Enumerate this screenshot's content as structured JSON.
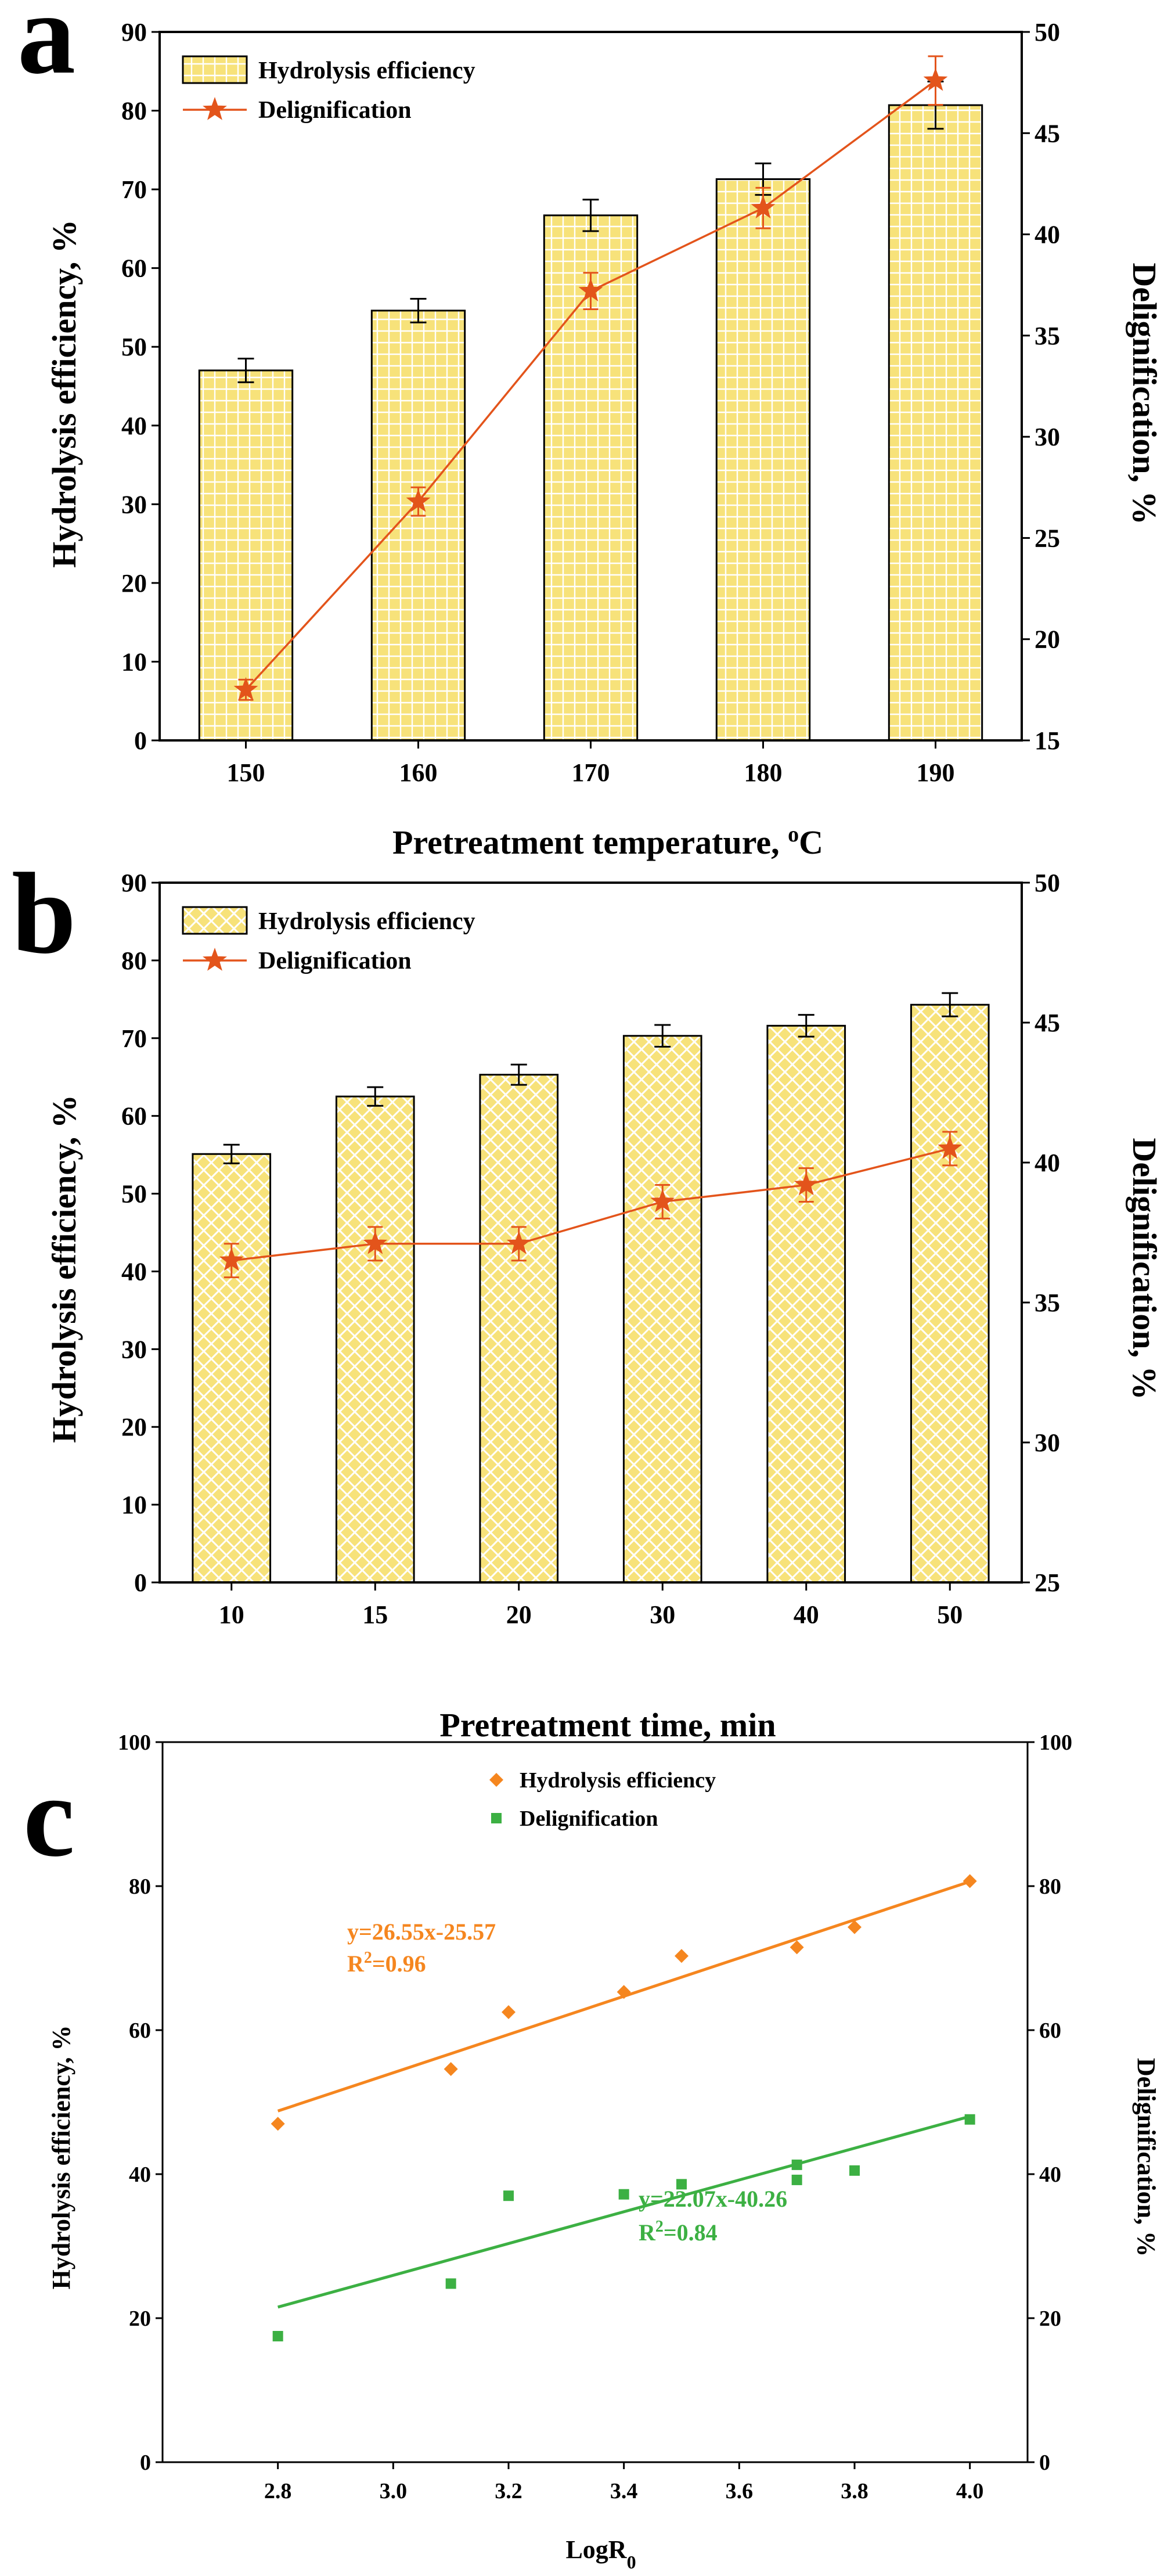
{
  "chart_data": [
    {
      "panel": "a",
      "type": "bar",
      "xlabel": "Pretreatment temperature, ",
      "xlabel_sup": "o",
      "xlabel_suffix": "C",
      "ylabel": "Hydrolysis efficiency, %",
      "y2label": "Delignification, %",
      "ylim": [
        0,
        90
      ],
      "y2lim": [
        15,
        50
      ],
      "yticks": [
        "0",
        "10",
        "20",
        "30",
        "40",
        "50",
        "60",
        "70",
        "80",
        "90"
      ],
      "y2ticks": [
        "15",
        "20",
        "25",
        "30",
        "35",
        "40",
        "45",
        "50"
      ],
      "categories": [
        "150",
        "160",
        "170",
        "180",
        "190"
      ],
      "series": [
        {
          "name": "Hydrolysis efficiency",
          "kind": "bar",
          "axis": "left",
          "values": [
            47.0,
            54.6,
            66.7,
            71.3,
            80.7
          ],
          "errors": [
            1.5,
            1.5,
            2.0,
            2.0,
            3.0
          ]
        },
        {
          "name": "Delignification",
          "kind": "line",
          "axis": "right",
          "values": [
            17.5,
            26.8,
            37.2,
            41.3,
            47.6
          ],
          "errors": [
            0.5,
            0.7,
            0.9,
            1.0,
            1.2
          ]
        }
      ],
      "legend_position": "top-left",
      "colors": {
        "bar_fill": "#f7e27a",
        "bar_hatch": "#ffffff",
        "line": "#e3541b",
        "marker": "#e3541b"
      }
    },
    {
      "panel": "b",
      "type": "bar",
      "xlabel": "Pretreatment time, min",
      "ylabel": "Hydrolysis efficiency, %",
      "y2label": "Delignification, %",
      "ylim": [
        0,
        90
      ],
      "y2lim": [
        25,
        50
      ],
      "yticks": [
        "0",
        "10",
        "20",
        "30",
        "40",
        "50",
        "60",
        "70",
        "80",
        "90"
      ],
      "y2ticks": [
        "25",
        "30",
        "35",
        "40",
        "45",
        "50"
      ],
      "categories": [
        "10",
        "15",
        "20",
        "30",
        "40",
        "50"
      ],
      "series": [
        {
          "name": "Hydrolysis efficiency",
          "kind": "bar",
          "axis": "left",
          "values": [
            55.1,
            62.5,
            65.3,
            70.3,
            71.6,
            74.3
          ],
          "errors": [
            1.2,
            1.2,
            1.3,
            1.4,
            1.4,
            1.5
          ]
        },
        {
          "name": "Delignification",
          "kind": "line",
          "axis": "right",
          "values": [
            36.5,
            37.1,
            37.1,
            38.6,
            39.2,
            40.5
          ],
          "errors": [
            0.6,
            0.6,
            0.6,
            0.6,
            0.6,
            0.6
          ]
        }
      ],
      "legend_position": "top-left",
      "colors": {
        "bar_fill": "#f7e27a",
        "bar_hatch": "#ffffff",
        "line": "#e3541b",
        "marker": "#e3541b"
      }
    },
    {
      "panel": "c",
      "type": "scatter",
      "xlabel": "LogR",
      "xlabel_sub": "0",
      "ylabel": "Hydrolysis efficiency, %",
      "y2label": "Delignification, %",
      "xlim": [
        2.6,
        4.1
      ],
      "ylim": [
        0,
        100
      ],
      "y2lim": [
        0,
        100
      ],
      "xticks": [
        "2.8",
        "3.0",
        "3.2",
        "3.4",
        "3.6",
        "3.8",
        "4.0"
      ],
      "yticks": [
        "0",
        "20",
        "40",
        "60",
        "80",
        "100"
      ],
      "y2ticks": [
        "0",
        "20",
        "40",
        "60",
        "80",
        "100"
      ],
      "series": [
        {
          "name": "Hydrolysis efficiency",
          "marker": "diamond",
          "x": [
            2.8,
            3.1,
            3.2,
            3.4,
            3.5,
            3.7,
            3.8,
            4.0
          ],
          "y": [
            47.0,
            54.6,
            62.5,
            65.3,
            70.3,
            71.5,
            74.3,
            80.7
          ],
          "fit": {
            "slope": 26.55,
            "intercept": -25.57,
            "equation": "y=26.55x-25.57",
            "r2_prefix": "R",
            "r2_sup": "2",
            "r2_value": "=0.96"
          }
        },
        {
          "name": "Delignification",
          "marker": "square",
          "x": [
            2.8,
            3.1,
            3.2,
            3.4,
            3.5,
            3.7,
            3.7,
            3.8,
            4.0
          ],
          "y": [
            17.5,
            24.8,
            37.0,
            37.2,
            38.6,
            39.2,
            41.3,
            40.5,
            47.6
          ],
          "fit": {
            "slope": 22.07,
            "intercept": -40.26,
            "equation": "y=22.07x-40.26",
            "r2_prefix": "R",
            "r2_sup": "2",
            "r2_value": "=0.84"
          }
        }
      ],
      "legend_position": "top-center",
      "colors": {
        "hydrolysis": "#f5861f",
        "delignification": "#3cb043"
      }
    }
  ]
}
